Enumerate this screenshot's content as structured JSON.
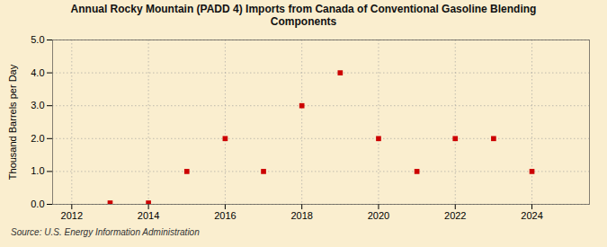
{
  "chart_data": {
    "type": "scatter",
    "title": "Annual Rocky Mountain (PADD 4) Imports from Canada of Conventional Gasoline Blending\nComponents",
    "ylabel": "Thousand Barrels per Day",
    "annotations": [
      "Source: U.S. Energy Information Administration"
    ],
    "x": [
      2013,
      2014,
      2015,
      2016,
      2017,
      2018,
      2019,
      2020,
      2021,
      2022,
      2023,
      2024
    ],
    "values": [
      0.04,
      0.04,
      1.0,
      2.0,
      1.0,
      3.0,
      4.0,
      2.0,
      1.0,
      2.0,
      2.0,
      1.0
    ],
    "color": "#cc0000",
    "marker": "square",
    "xlim": [
      2011.5,
      2025.5
    ],
    "ylim": [
      0.0,
      5.0
    ],
    "xticks": [
      2012,
      2014,
      2016,
      2018,
      2020,
      2022,
      2024
    ],
    "yticks": [
      {
        "value": 0,
        "label": "0.0"
      },
      {
        "value": 1,
        "label": "1.0"
      },
      {
        "value": 2,
        "label": "2.0"
      },
      {
        "value": 3,
        "label": "3.0"
      },
      {
        "value": 4,
        "label": "4.0"
      },
      {
        "value": 5,
        "label": "5.0"
      }
    ],
    "grid": true
  }
}
